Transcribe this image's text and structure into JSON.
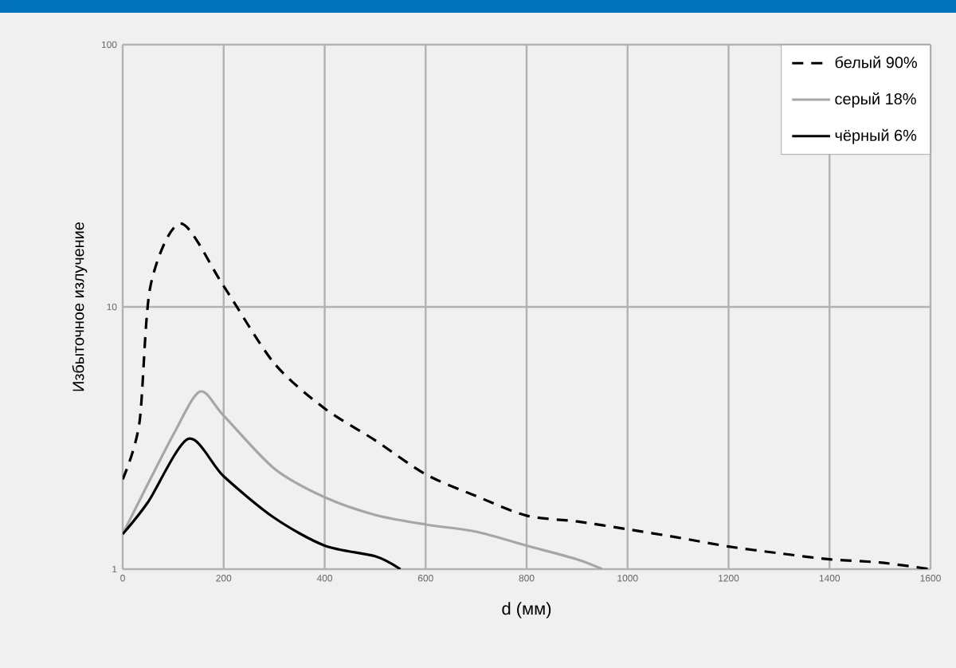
{
  "chart_data": {
    "type": "line",
    "xlabel": "d (мм)",
    "ylabel": "Избыточное излучение",
    "log": "y",
    "xlim": [
      0,
      1600
    ],
    "ylim": [
      1,
      100
    ],
    "xticks": [
      0,
      200,
      400,
      600,
      800,
      1000,
      1200,
      1400,
      1600
    ],
    "yticks": [
      1,
      10,
      100
    ],
    "grid": true,
    "legend": "top right",
    "series": [
      {
        "name": "белый 90%",
        "color": "#000000",
        "line_style": "dashed",
        "x": [
          0,
          33,
          55,
          115,
          200,
          300,
          400,
          500,
          600,
          700,
          800,
          900,
          1000,
          1100,
          1200,
          1300,
          1400,
          1500,
          1600
        ],
        "values": [
          2.2,
          3.6,
          12,
          20.8,
          12,
          6.1,
          4.1,
          3.1,
          2.3,
          1.9,
          1.6,
          1.52,
          1.42,
          1.32,
          1.22,
          1.15,
          1.09,
          1.06,
          1.0
        ]
      },
      {
        "name": "серый 18%",
        "color": "#a6a6a6",
        "line_style": "solid",
        "x": [
          0,
          100,
          153,
          200,
          300,
          400,
          500,
          600,
          700,
          800,
          900,
          950
        ],
        "values": [
          1.36,
          3.25,
          4.75,
          3.85,
          2.42,
          1.88,
          1.61,
          1.48,
          1.39,
          1.23,
          1.09,
          1.0
        ]
      },
      {
        "name": "чёрный 6%",
        "color": "#000000",
        "line_style": "solid",
        "x": [
          0,
          50,
          130,
          200,
          300,
          400,
          500,
          550
        ],
        "values": [
          1.36,
          1.8,
          3.14,
          2.26,
          1.57,
          1.23,
          1.12,
          1.0
        ]
      }
    ]
  }
}
